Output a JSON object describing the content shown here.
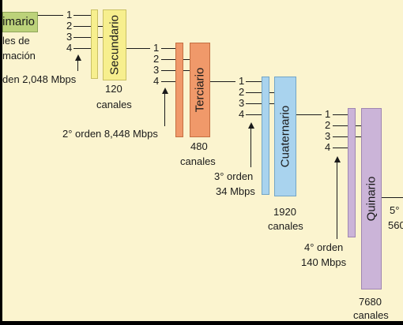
{
  "colors": {
    "background": "#fbf4cf",
    "primario": "#bcd27a",
    "secundario": "#f7ef8e",
    "terciario": "#f0996a",
    "cuaternario": "#a9d3ee",
    "quinario": "#cbb4d8"
  },
  "inputs": [
    "1",
    "2",
    "3",
    "4"
  ],
  "stages": {
    "primario": {
      "label": "Primario",
      "notes": [
        "les de",
        "mación"
      ],
      "rate": "den 2,048 Mbps"
    },
    "secundario": {
      "label": "Secundario",
      "count": "120",
      "unit": "canales",
      "rate": "2° orden 8,448 Mbps"
    },
    "terciario": {
      "label": "Terciario",
      "count": "480",
      "unit": "canales",
      "rate_line1": "3° orden",
      "rate_line2": "34 Mbps"
    },
    "cuaternario": {
      "label": "Cuaternario",
      "count": "1920",
      "unit": "canales",
      "rate_line1": "4° orden",
      "rate_line2": "140 Mbps"
    },
    "quinario": {
      "label": "Quinario",
      "count": "7680",
      "unit": "canales",
      "next_line1": "5°",
      "next_line2": "560"
    }
  }
}
